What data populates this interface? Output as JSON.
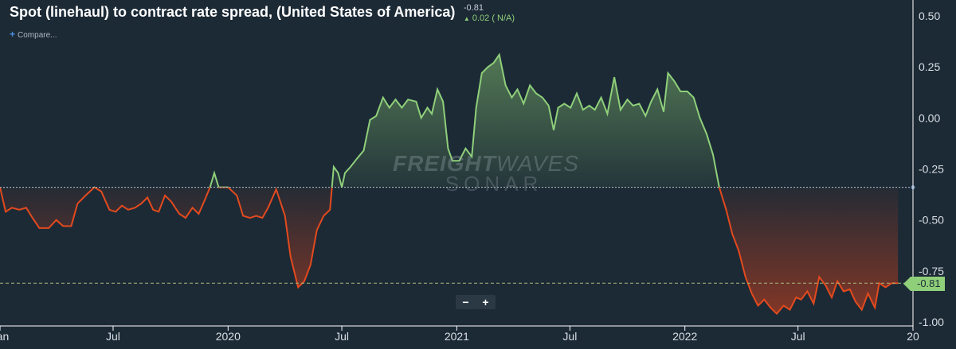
{
  "header": {
    "title": "Spot (linehaul) to contract rate spread, (United States of America)",
    "current_value": "-0.81",
    "change": "0.02 ( N/A)",
    "compare_label": "Compare...",
    "compare_icon": "plus-icon"
  },
  "watermark": {
    "brand_bold": "FREIGHT",
    "brand_thin": "WAVES",
    "sub": "SONAR"
  },
  "zoom": {
    "minus": "−",
    "plus": "+"
  },
  "colors": {
    "positive": "#8fcf7a",
    "negative": "#e34a1e",
    "background": "#1c2a36"
  },
  "chart_data": {
    "type": "area",
    "title": "Spot (linehaul) to contract rate spread, (United States of America)",
    "baseline": -0.34,
    "current_value": -0.81,
    "current_label": "-0.81",
    "ylim": [
      -1.0,
      0.5
    ],
    "y_ticks": [
      0.5,
      0.25,
      0.0,
      -0.25,
      -0.5,
      -0.75,
      -1.0
    ],
    "y_tick_labels": [
      "0.50",
      "0.25",
      "0.00",
      "-0.25",
      "-0.50",
      "-0.75",
      "-1.00"
    ],
    "x_range": [
      "2019-01-01",
      "2023-01-01"
    ],
    "x_ticks": [
      {
        "date": "2019-01-01",
        "label": "Jan"
      },
      {
        "date": "2019-07-01",
        "label": "Jul"
      },
      {
        "date": "2020-01-01",
        "label": "2020"
      },
      {
        "date": "2020-07-01",
        "label": "Jul"
      },
      {
        "date": "2021-01-01",
        "label": "2021"
      },
      {
        "date": "2021-07-01",
        "label": "Jul"
      },
      {
        "date": "2022-01-01",
        "label": "2022"
      },
      {
        "date": "2022-07-01",
        "label": "Jul"
      },
      {
        "date": "2023-01-01",
        "label": "20"
      }
    ],
    "grid": false,
    "series": [
      {
        "name": "Spot (linehaul) to contract rate spread, (United States of America)",
        "points": [
          [
            "2019-01-01",
            -0.34
          ],
          [
            "2019-01-10",
            -0.46
          ],
          [
            "2019-01-20",
            -0.44
          ],
          [
            "2019-02-01",
            -0.45
          ],
          [
            "2019-02-12",
            -0.44
          ],
          [
            "2019-02-22",
            -0.49
          ],
          [
            "2019-03-05",
            -0.54
          ],
          [
            "2019-03-20",
            -0.54
          ],
          [
            "2019-04-01",
            -0.5
          ],
          [
            "2019-04-12",
            -0.53
          ],
          [
            "2019-04-25",
            -0.53
          ],
          [
            "2019-05-05",
            -0.42
          ],
          [
            "2019-05-18",
            -0.38
          ],
          [
            "2019-06-01",
            -0.34
          ],
          [
            "2019-06-12",
            -0.36
          ],
          [
            "2019-06-25",
            -0.45
          ],
          [
            "2019-07-05",
            -0.46
          ],
          [
            "2019-07-15",
            -0.43
          ],
          [
            "2019-07-25",
            -0.45
          ],
          [
            "2019-08-05",
            -0.44
          ],
          [
            "2019-08-15",
            -0.42
          ],
          [
            "2019-08-25",
            -0.39
          ],
          [
            "2019-09-03",
            -0.45
          ],
          [
            "2019-09-12",
            -0.46
          ],
          [
            "2019-09-22",
            -0.38
          ],
          [
            "2019-10-02",
            -0.41
          ],
          [
            "2019-10-15",
            -0.47
          ],
          [
            "2019-10-25",
            -0.49
          ],
          [
            "2019-11-05",
            -0.44
          ],
          [
            "2019-11-15",
            -0.47
          ],
          [
            "2019-11-25",
            -0.4
          ],
          [
            "2019-12-03",
            -0.34
          ],
          [
            "2019-12-10",
            -0.27
          ],
          [
            "2019-12-17",
            -0.34
          ],
          [
            "2020-01-01",
            -0.34
          ],
          [
            "2020-01-15",
            -0.38
          ],
          [
            "2020-01-25",
            -0.48
          ],
          [
            "2020-02-05",
            -0.49
          ],
          [
            "2020-02-15",
            -0.48
          ],
          [
            "2020-02-25",
            -0.49
          ],
          [
            "2020-03-05",
            -0.44
          ],
          [
            "2020-03-18",
            -0.35
          ],
          [
            "2020-04-01",
            -0.48
          ],
          [
            "2020-04-10",
            -0.68
          ],
          [
            "2020-04-22",
            -0.83
          ],
          [
            "2020-05-02",
            -0.8
          ],
          [
            "2020-05-12",
            -0.72
          ],
          [
            "2020-05-22",
            -0.55
          ],
          [
            "2020-06-02",
            -0.48
          ],
          [
            "2020-06-12",
            -0.45
          ],
          [
            "2020-06-18",
            -0.24
          ],
          [
            "2020-06-25",
            -0.27
          ],
          [
            "2020-07-01",
            -0.34
          ],
          [
            "2020-07-06",
            -0.27
          ],
          [
            "2020-07-15",
            -0.24
          ],
          [
            "2020-07-25",
            -0.2
          ],
          [
            "2020-08-05",
            -0.16
          ],
          [
            "2020-08-15",
            -0.01
          ],
          [
            "2020-08-25",
            0.01
          ],
          [
            "2020-09-05",
            0.1
          ],
          [
            "2020-09-15",
            0.05
          ],
          [
            "2020-09-25",
            0.09
          ],
          [
            "2020-10-05",
            0.05
          ],
          [
            "2020-10-15",
            0.09
          ],
          [
            "2020-10-28",
            0.08
          ],
          [
            "2020-11-05",
            0.0
          ],
          [
            "2020-11-15",
            0.05
          ],
          [
            "2020-11-22",
            0.02
          ],
          [
            "2020-12-01",
            0.14
          ],
          [
            "2020-12-10",
            0.08
          ],
          [
            "2020-12-18",
            -0.15
          ],
          [
            "2020-12-25",
            -0.21
          ],
          [
            "2021-01-05",
            -0.21
          ],
          [
            "2021-01-15",
            -0.15
          ],
          [
            "2021-01-25",
            -0.19
          ],
          [
            "2021-02-01",
            0.05
          ],
          [
            "2021-02-10",
            0.22
          ],
          [
            "2021-02-20",
            0.25
          ],
          [
            "2021-03-01",
            0.27
          ],
          [
            "2021-03-10",
            0.31
          ],
          [
            "2021-03-20",
            0.16
          ],
          [
            "2021-03-30",
            0.1
          ],
          [
            "2021-04-08",
            0.14
          ],
          [
            "2021-04-18",
            0.07
          ],
          [
            "2021-04-28",
            0.16
          ],
          [
            "2021-05-08",
            0.12
          ],
          [
            "2021-05-18",
            0.1
          ],
          [
            "2021-05-28",
            0.06
          ],
          [
            "2021-06-05",
            -0.06
          ],
          [
            "2021-06-12",
            0.05
          ],
          [
            "2021-06-22",
            0.07
          ],
          [
            "2021-07-02",
            0.05
          ],
          [
            "2021-07-12",
            0.12
          ],
          [
            "2021-07-22",
            0.04
          ],
          [
            "2021-08-01",
            0.06
          ],
          [
            "2021-08-10",
            0.04
          ],
          [
            "2021-08-20",
            0.1
          ],
          [
            "2021-08-30",
            0.02
          ],
          [
            "2021-09-10",
            0.2
          ],
          [
            "2021-09-20",
            0.04
          ],
          [
            "2021-10-01",
            0.09
          ],
          [
            "2021-10-10",
            0.06
          ],
          [
            "2021-10-20",
            0.07
          ],
          [
            "2021-10-30",
            0.01
          ],
          [
            "2021-11-08",
            0.08
          ],
          [
            "2021-11-18",
            0.14
          ],
          [
            "2021-11-28",
            0.03
          ],
          [
            "2021-12-05",
            0.22
          ],
          [
            "2021-12-15",
            0.18
          ],
          [
            "2021-12-25",
            0.13
          ],
          [
            "2022-01-05",
            0.13
          ],
          [
            "2022-01-15",
            0.1
          ],
          [
            "2022-01-25",
            0.0
          ],
          [
            "2022-02-05",
            -0.08
          ],
          [
            "2022-02-15",
            -0.18
          ],
          [
            "2022-02-25",
            -0.34
          ],
          [
            "2022-03-08",
            -0.45
          ],
          [
            "2022-03-18",
            -0.57
          ],
          [
            "2022-03-28",
            -0.65
          ],
          [
            "2022-04-08",
            -0.78
          ],
          [
            "2022-04-18",
            -0.86
          ],
          [
            "2022-04-28",
            -0.92
          ],
          [
            "2022-05-08",
            -0.89
          ],
          [
            "2022-05-18",
            -0.93
          ],
          [
            "2022-05-28",
            -0.96
          ],
          [
            "2022-06-08",
            -0.92
          ],
          [
            "2022-06-18",
            -0.94
          ],
          [
            "2022-06-28",
            -0.88
          ],
          [
            "2022-07-06",
            -0.89
          ],
          [
            "2022-07-16",
            -0.85
          ],
          [
            "2022-07-26",
            -0.91
          ],
          [
            "2022-08-04",
            -0.78
          ],
          [
            "2022-08-14",
            -0.82
          ],
          [
            "2022-08-24",
            -0.88
          ],
          [
            "2022-09-02",
            -0.8
          ],
          [
            "2022-09-12",
            -0.85
          ],
          [
            "2022-09-22",
            -0.84
          ],
          [
            "2022-10-01",
            -0.9
          ],
          [
            "2022-10-11",
            -0.94
          ],
          [
            "2022-10-21",
            -0.86
          ],
          [
            "2022-11-01",
            -0.93
          ],
          [
            "2022-11-08",
            -0.81
          ],
          [
            "2022-11-18",
            -0.83
          ],
          [
            "2022-11-28",
            -0.81
          ],
          [
            "2022-12-08",
            -0.81
          ]
        ]
      }
    ]
  }
}
